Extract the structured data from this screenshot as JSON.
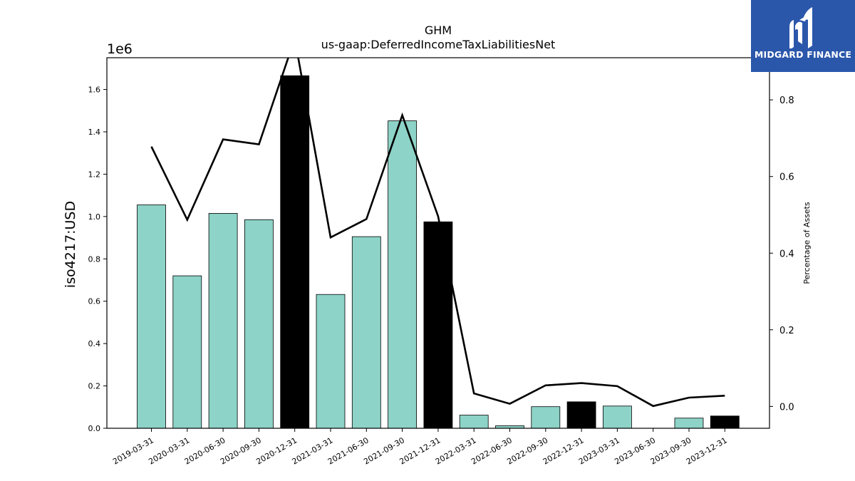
{
  "chart_data": {
    "type": "bar",
    "title": "GHM",
    "subtitle": "us-gaap:DeferredIncomeTaxLiabilitiesNet",
    "ylabel": "iso4217:USD",
    "y_scale_label": "1e6",
    "y2label": "Percentage of Assets",
    "ylim": [
      0,
      1.75
    ],
    "y2lim": [
      -0.057,
      0.91
    ],
    "yticks": [
      "0.0",
      "0.2",
      "0.4",
      "0.6",
      "0.8",
      "1.0",
      "1.2",
      "1.4",
      "1.6"
    ],
    "y2ticks": [
      "0.0",
      "0.2",
      "0.4",
      "0.6",
      "0.8"
    ],
    "grid": false,
    "categories": [
      "2019-03-31",
      "2020-03-31",
      "2020-06-30",
      "2020-09-30",
      "2020-12-31",
      "2021-03-31",
      "2021-06-30",
      "2021-09-30",
      "2021-12-31",
      "2022-03-31",
      "2022-06-30",
      "2022-09-30",
      "2022-12-31",
      "2023-03-31",
      "2023-06-30",
      "2023-09-30",
      "2023-12-31"
    ],
    "values": [
      1.055,
      0.72,
      1.015,
      0.985,
      1.665,
      0.632,
      0.905,
      1.452,
      0.975,
      0.062,
      0.012,
      0.102,
      0.125,
      0.105,
      0.0,
      0.048,
      0.058
    ],
    "bar_colors": [
      "#8dd3c7",
      "#8dd3c7",
      "#8dd3c7",
      "#8dd3c7",
      "#000000",
      "#8dd3c7",
      "#8dd3c7",
      "#8dd3c7",
      "#000000",
      "#8dd3c7",
      "#8dd3c7",
      "#8dd3c7",
      "#000000",
      "#8dd3c7",
      "#8dd3c7",
      "#8dd3c7",
      "#000000"
    ],
    "percentage_of_assets": [
      0.678,
      0.487,
      0.697,
      0.684,
      0.96,
      0.441,
      0.489,
      0.76,
      0.496,
      0.034,
      0.007,
      0.055,
      0.061,
      0.053,
      0.001,
      0.023,
      0.028
    ]
  },
  "logo": {
    "text": "MIDGARD FINANCE",
    "color": "#2b57ab"
  }
}
